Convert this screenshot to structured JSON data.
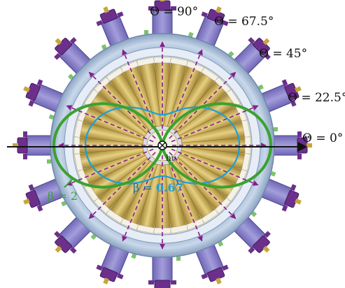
{
  "angle_labels": {
    "a90": "Θ = 90°",
    "a675": "Θ = 67.5°",
    "a45": "Θ = 45°",
    "a225": "Θ = 22.5°",
    "a0": "Θ = 0°"
  },
  "beta_labels": {
    "outer": "β = 2",
    "inner_prefix": "β = ",
    "inner_value": "0.67"
  },
  "photon_label": "hν",
  "colors": {
    "outer_lobe": "#3aa22f",
    "inner_lobe": "#1aa0d8",
    "arrow": "#8a1d8a",
    "detector_body": "#8a83c9",
    "detector_cap": "#6c2f8c",
    "ring": "#a9bfd8",
    "gold": "#c9a53a"
  },
  "detector_count": 16
}
